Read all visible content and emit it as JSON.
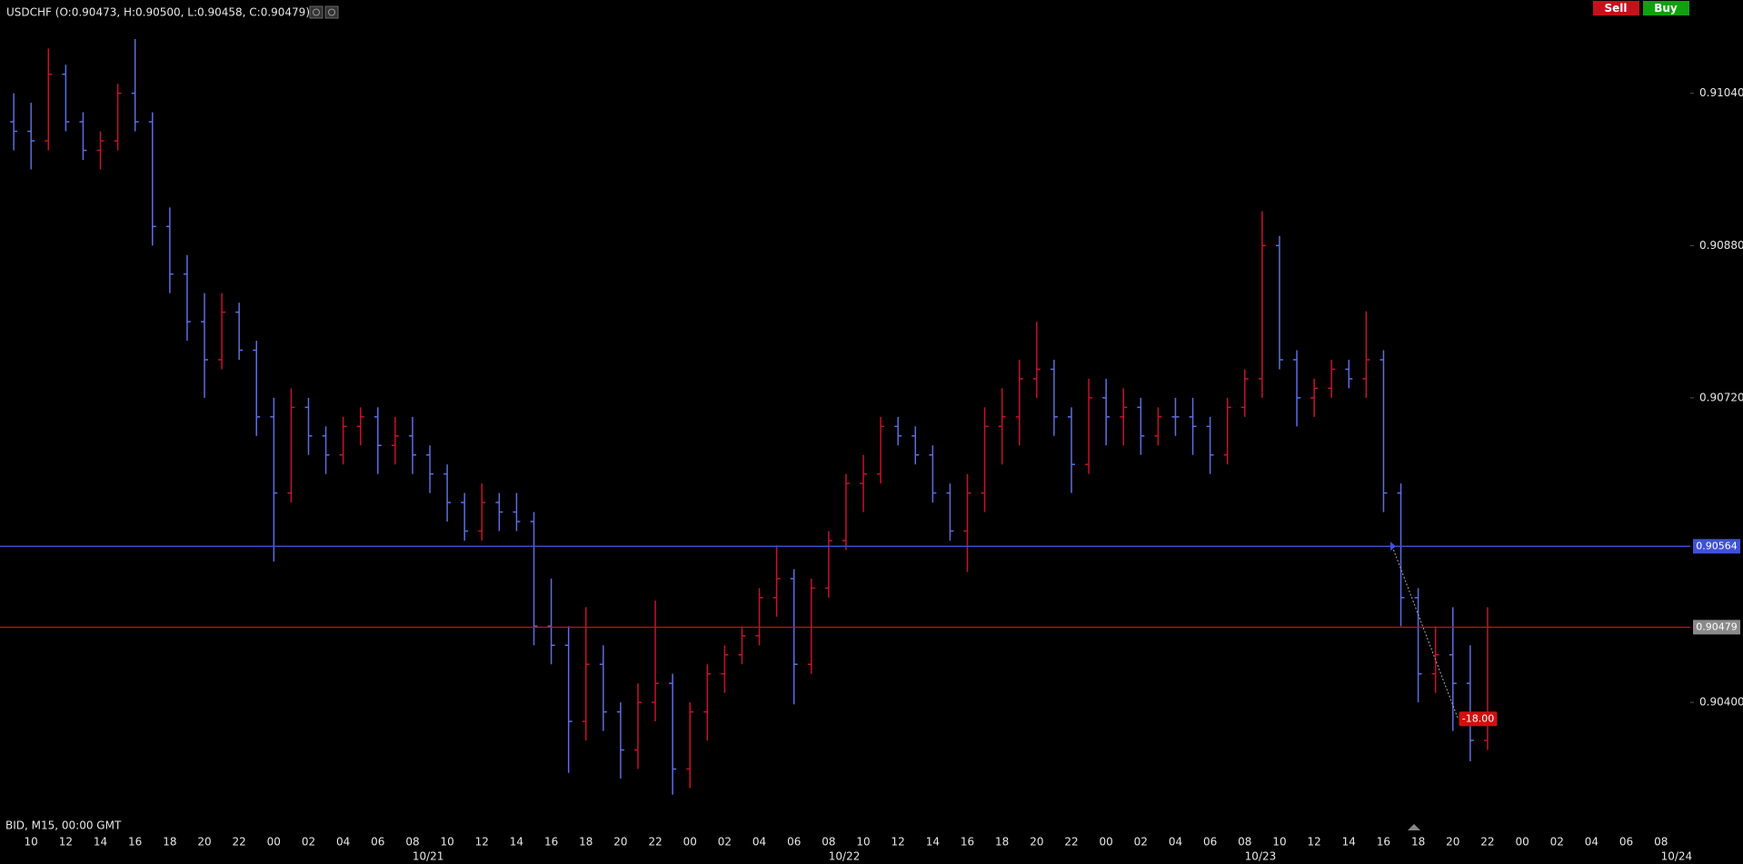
{
  "chart_data": {
    "type": "ohlc",
    "title": "USDCHF (O:0.90473, H:0.90500, L:0.90458, C:0.90479)",
    "footer": "BID, M15, 00:00 GMT",
    "buttons": [
      "Sell",
      "Buy"
    ],
    "ylim": [
      0.90276,
      0.91138
    ],
    "yticks": [
      {
        "value": 0.9104,
        "label": "0.91040"
      },
      {
        "value": 0.9088,
        "label": "0.90880"
      },
      {
        "value": 0.9072,
        "label": "0.90720"
      },
      {
        "value": 0.904,
        "label": "0.90400"
      }
    ],
    "up_color": "#c8102e",
    "down_color": "#5b6ee1",
    "time_labels": [
      "10",
      "12",
      "14",
      "16",
      "18",
      "20",
      "22",
      "00",
      "02",
      "04",
      "06",
      "08",
      "10",
      "12",
      "14",
      "16",
      "18",
      "20",
      "22",
      "00",
      "02",
      "04",
      "06",
      "08",
      "10",
      "12",
      "14",
      "16",
      "18",
      "20",
      "22",
      "00",
      "02",
      "04",
      "06",
      "08",
      "10",
      "12",
      "14",
      "16",
      "18",
      "20",
      "22",
      "00",
      "02",
      "04",
      "06",
      "08"
    ],
    "date_labels": [
      "10/21",
      "10/22",
      "10/23",
      "10/24"
    ],
    "levels": [
      {
        "value": 0.90564,
        "label": "0.90564",
        "color": "#3f51d8",
        "label_color": "#3f51d8"
      },
      {
        "value": 0.90479,
        "label": "0.90479",
        "color": "#c0101a",
        "label_color": "#8a8a8a"
      }
    ],
    "position": {
      "value": -18,
      "label": "-18.00"
    },
    "bars": [
      [
        0.9101,
        0.9104,
        0.9098,
        0.91
      ],
      [
        0.91,
        0.9103,
        0.9096,
        0.9099
      ],
      [
        0.9099,
        0.91087,
        0.9098,
        0.9106
      ],
      [
        0.9106,
        0.9107,
        0.91,
        0.9101
      ],
      [
        0.9101,
        0.9102,
        0.9097,
        0.9098
      ],
      [
        0.9098,
        0.91,
        0.9096,
        0.9099
      ],
      [
        0.9099,
        0.9105,
        0.9098,
        0.9104
      ],
      [
        0.9104,
        0.91097,
        0.91,
        0.9101
      ],
      [
        0.9101,
        0.9102,
        0.9088,
        0.909
      ],
      [
        0.909,
        0.9092,
        0.9083,
        0.9085
      ],
      [
        0.9085,
        0.9087,
        0.9078,
        0.908
      ],
      [
        0.908,
        0.9083,
        0.9072,
        0.9076
      ],
      [
        0.9076,
        0.9083,
        0.9075,
        0.9081
      ],
      [
        0.9081,
        0.9082,
        0.9076,
        0.9077
      ],
      [
        0.9077,
        0.9078,
        0.9068,
        0.907
      ],
      [
        0.907,
        0.9072,
        0.90548,
        0.9062
      ],
      [
        0.9062,
        0.9073,
        0.9061,
        0.9071
      ],
      [
        0.9071,
        0.9072,
        0.9066,
        0.9068
      ],
      [
        0.9068,
        0.9069,
        0.9064,
        0.9066
      ],
      [
        0.9066,
        0.907,
        0.9065,
        0.9069
      ],
      [
        0.9069,
        0.9071,
        0.9067,
        0.907
      ],
      [
        0.907,
        0.9071,
        0.9064,
        0.9067
      ],
      [
        0.9067,
        0.907,
        0.9065,
        0.9068
      ],
      [
        0.9068,
        0.907,
        0.9064,
        0.9066
      ],
      [
        0.9066,
        0.9067,
        0.9062,
        0.9064
      ],
      [
        0.9064,
        0.9065,
        0.9059,
        0.9061
      ],
      [
        0.9061,
        0.9062,
        0.9057,
        0.9058
      ],
      [
        0.9058,
        0.9063,
        0.9057,
        0.9061
      ],
      [
        0.9061,
        0.9062,
        0.9058,
        0.906
      ],
      [
        0.906,
        0.9062,
        0.9058,
        0.9059
      ],
      [
        0.9059,
        0.906,
        0.9046,
        0.9048
      ],
      [
        0.9048,
        0.9053,
        0.9044,
        0.9046
      ],
      [
        0.9046,
        0.9048,
        0.90326,
        0.9038
      ],
      [
        0.9038,
        0.905,
        0.9036,
        0.9044
      ],
      [
        0.9044,
        0.9046,
        0.9037,
        0.9039
      ],
      [
        0.9039,
        0.904,
        0.9032,
        0.9035
      ],
      [
        0.9035,
        0.9042,
        0.9033,
        0.904
      ],
      [
        0.904,
        0.90507,
        0.9038,
        0.9042
      ],
      [
        0.9042,
        0.9043,
        0.90303,
        0.9033
      ],
      [
        0.9033,
        0.904,
        0.9031,
        0.9039
      ],
      [
        0.9039,
        0.9044,
        0.9036,
        0.9043
      ],
      [
        0.9043,
        0.9046,
        0.9041,
        0.9045
      ],
      [
        0.9045,
        0.9048,
        0.9044,
        0.9047
      ],
      [
        0.9047,
        0.9052,
        0.9046,
        0.9051
      ],
      [
        0.9051,
        0.90565,
        0.9049,
        0.9053
      ],
      [
        0.9053,
        0.9054,
        0.90398,
        0.9044
      ],
      [
        0.9044,
        0.9053,
        0.9043,
        0.9052
      ],
      [
        0.9052,
        0.9058,
        0.9051,
        0.9057
      ],
      [
        0.9057,
        0.9064,
        0.9056,
        0.9063
      ],
      [
        0.9063,
        0.9066,
        0.906,
        0.9064
      ],
      [
        0.9064,
        0.907,
        0.9063,
        0.9069
      ],
      [
        0.9069,
        0.907,
        0.9067,
        0.9068
      ],
      [
        0.9068,
        0.9069,
        0.9065,
        0.9066
      ],
      [
        0.9066,
        0.9067,
        0.9061,
        0.9062
      ],
      [
        0.9062,
        0.9063,
        0.9057,
        0.9058
      ],
      [
        0.9058,
        0.9064,
        0.90537,
        0.9062
      ],
      [
        0.9062,
        0.9071,
        0.906,
        0.9069
      ],
      [
        0.9069,
        0.9073,
        0.9065,
        0.907
      ],
      [
        0.907,
        0.9076,
        0.9067,
        0.9074
      ],
      [
        0.9074,
        0.908,
        0.9072,
        0.9075
      ],
      [
        0.9075,
        0.9076,
        0.9068,
        0.907
      ],
      [
        0.907,
        0.9071,
        0.9062,
        0.9065
      ],
      [
        0.9065,
        0.9074,
        0.9064,
        0.9072
      ],
      [
        0.9072,
        0.9074,
        0.9067,
        0.907
      ],
      [
        0.907,
        0.9073,
        0.9067,
        0.9071
      ],
      [
        0.9071,
        0.9072,
        0.9066,
        0.9068
      ],
      [
        0.9068,
        0.9071,
        0.9067,
        0.907
      ],
      [
        0.907,
        0.9072,
        0.9068,
        0.907
      ],
      [
        0.907,
        0.9072,
        0.9066,
        0.9069
      ],
      [
        0.9069,
        0.907,
        0.9064,
        0.9066
      ],
      [
        0.9066,
        0.9072,
        0.9065,
        0.9071
      ],
      [
        0.9071,
        0.9075,
        0.907,
        0.9074
      ],
      [
        0.9074,
        0.90916,
        0.9072,
        0.9088
      ],
      [
        0.9088,
        0.9089,
        0.9075,
        0.9076
      ],
      [
        0.9076,
        0.9077,
        0.9069,
        0.9072
      ],
      [
        0.9072,
        0.9074,
        0.907,
        0.9073
      ],
      [
        0.9073,
        0.9076,
        0.9072,
        0.9075
      ],
      [
        0.9075,
        0.9076,
        0.9073,
        0.9074
      ],
      [
        0.9074,
        0.90811,
        0.9072,
        0.9076
      ],
      [
        0.9076,
        0.9077,
        0.906,
        0.9062
      ],
      [
        0.9062,
        0.9063,
        0.9048,
        0.9051
      ],
      [
        0.9051,
        0.9052,
        0.904,
        0.9043
      ],
      [
        0.9043,
        0.9048,
        0.9041,
        0.9045
      ],
      [
        0.9045,
        0.905,
        0.9037,
        0.9042
      ],
      [
        0.9042,
        0.9046,
        0.90338,
        0.9036
      ],
      [
        0.9036,
        0.905,
        0.9035,
        0.90479
      ]
    ]
  }
}
